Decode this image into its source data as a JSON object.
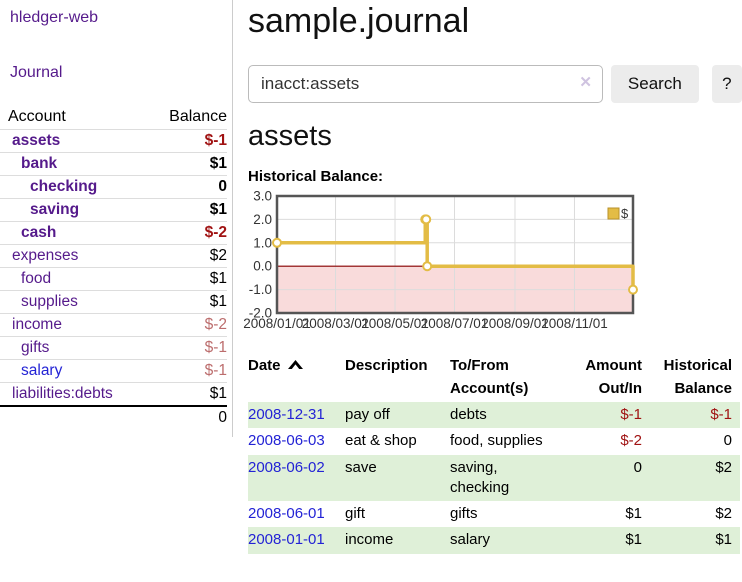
{
  "app": {
    "brand": "hledger-web",
    "nav_journal": "Journal"
  },
  "colors": {
    "link_purple": "#551a8b",
    "link_blue": "#2323d5",
    "negative_strong": "#a01212",
    "negative_soft": "#bc6d6d",
    "row_stripe": "#dff0d8",
    "chart_line": "#e3bc45",
    "chart_negative_fill": "#f9dbdb",
    "chart_zero_line": "#8b0000"
  },
  "sidebar": {
    "accounts_header": {
      "account": "Account",
      "balance": "Balance"
    },
    "accounts": [
      {
        "name": "assets",
        "indent": 0,
        "bold": true,
        "balance": "$-1",
        "balance_class": "neg-strong"
      },
      {
        "name": "bank",
        "indent": 1,
        "bold": true,
        "balance": "$1",
        "balance_class": ""
      },
      {
        "name": "checking",
        "indent": 2,
        "bold": true,
        "balance": "0",
        "balance_class": ""
      },
      {
        "name": "saving",
        "indent": 2,
        "bold": true,
        "balance": "$1",
        "balance_class": ""
      },
      {
        "name": "cash",
        "indent": 1,
        "bold": true,
        "balance": "$-2",
        "balance_class": "neg-strong"
      },
      {
        "name": "expenses",
        "indent": 0,
        "bold": false,
        "balance": "$2",
        "balance_class": ""
      },
      {
        "name": "food",
        "indent": 1,
        "bold": false,
        "balance": "$1",
        "balance_class": ""
      },
      {
        "name": "supplies",
        "indent": 1,
        "bold": false,
        "balance": "$1",
        "balance_class": ""
      },
      {
        "name": "income",
        "indent": 0,
        "bold": false,
        "balance": "$-2",
        "balance_class": "neg-soft"
      },
      {
        "name": "gifts",
        "indent": 1,
        "bold": false,
        "balance": "$-1",
        "balance_class": "neg-soft"
      },
      {
        "name": "salary",
        "indent": 1,
        "bold": false,
        "balance": "$-1",
        "balance_class": "neg-soft",
        "link_class": "blue"
      },
      {
        "name": "liabilities:debts",
        "indent": 0,
        "bold": false,
        "balance": "$1",
        "balance_class": ""
      }
    ],
    "total": "0"
  },
  "header": {
    "title": "sample.journal"
  },
  "search": {
    "value": "inacct:assets",
    "clear_label": "✕",
    "button": "Search",
    "help": "?"
  },
  "main": {
    "account_title": "assets",
    "chart_label": "Historical Balance:"
  },
  "chart_data": {
    "type": "line",
    "title": "Historical Balance",
    "legend": [
      "$"
    ],
    "step": true,
    "ylim": [
      -2,
      3
    ],
    "xlim_days": [
      0,
      365
    ],
    "y_ticks": [
      3.0,
      2.0,
      1.0,
      0.0,
      -1.0,
      -2.0
    ],
    "x_ticks": [
      {
        "label": "2008/01/01",
        "day": 0
      },
      {
        "label": "2008/03/01",
        "day": 60
      },
      {
        "label": "2008/05/01",
        "day": 121
      },
      {
        "label": "2008/07/01",
        "day": 182
      },
      {
        "label": "2008/09/01",
        "day": 244
      },
      {
        "label": "2008/11/01",
        "day": 305
      }
    ],
    "points": [
      {
        "date": "2008-01-01",
        "day": 0,
        "value": 1
      },
      {
        "date": "2008-06-01",
        "day": 152,
        "value": 2
      },
      {
        "date": "2008-06-02",
        "day": 153,
        "value": 2
      },
      {
        "date": "2008-06-03",
        "day": 154,
        "value": 0
      },
      {
        "date": "2008-12-31",
        "day": 365,
        "value": -1
      }
    ],
    "grid": true,
    "legend_position": "top-right"
  },
  "table": {
    "headers": {
      "date": "Date",
      "sort_icon": "chevron-up",
      "description": "Description",
      "tofrom": [
        "To/From",
        "Account(s)"
      ],
      "amount": [
        "Amount",
        "Out/In"
      ],
      "balance": [
        "Historical",
        "Balance"
      ]
    },
    "rows": [
      {
        "date": "2008-12-31",
        "description": "pay off",
        "accounts": "debts",
        "amount": "$-1",
        "amount_neg": true,
        "balance": "$-1",
        "balance_neg": true,
        "shade": true
      },
      {
        "date": "2008-06-03",
        "description": "eat & shop",
        "accounts": "food, supplies",
        "amount": "$-2",
        "amount_neg": true,
        "balance": "0",
        "balance_neg": false,
        "shade": false
      },
      {
        "date": "2008-06-02",
        "description": "save",
        "accounts": "saving,\nchecking",
        "amount": "0",
        "amount_neg": false,
        "balance": "$2",
        "balance_neg": false,
        "shade": true
      },
      {
        "date": "2008-06-01",
        "description": "gift",
        "accounts": "gifts",
        "amount": "$1",
        "amount_neg": false,
        "balance": "$2",
        "balance_neg": false,
        "shade": false
      },
      {
        "date": "2008-01-01",
        "description": "income",
        "accounts": "salary",
        "amount": "$1",
        "amount_neg": false,
        "balance": "$1",
        "balance_neg": false,
        "shade": true
      }
    ]
  }
}
